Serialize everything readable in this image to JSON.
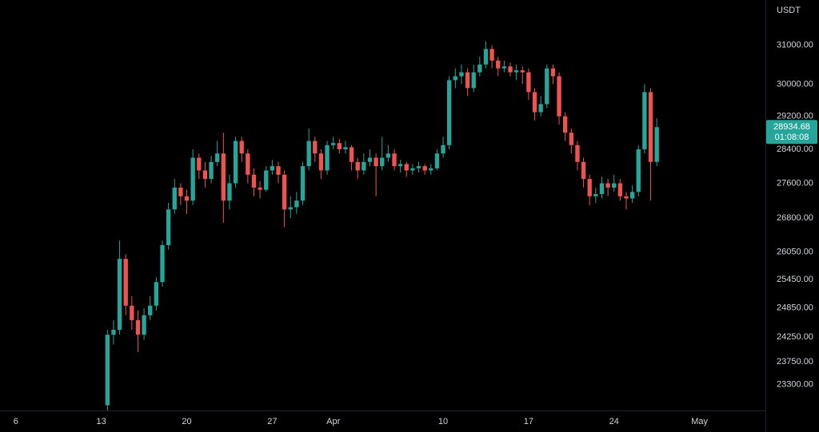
{
  "chart_data": {
    "type": "candlestick",
    "currency": "USDT",
    "log_scale": true,
    "up_color": "#26a69a",
    "down_color": "#ef5350",
    "last_price": 28934.68,
    "countdown": "01:08:08",
    "ylim": [
      22800,
      32200
    ],
    "yticks": [
      {
        "value": 31000,
        "label": "31000.00"
      },
      {
        "value": 30000,
        "label": "30000.00"
      },
      {
        "value": 29200,
        "label": "29200.00"
      },
      {
        "value": 28400,
        "label": "28400.00"
      },
      {
        "value": 27600,
        "label": "27600.00"
      },
      {
        "value": 26800,
        "label": "26800.00"
      },
      {
        "value": 26050,
        "label": "26050.00"
      },
      {
        "value": 25450,
        "label": "25450.00"
      },
      {
        "value": 24850,
        "label": "24850.00"
      },
      {
        "value": 24250,
        "label": "24250.00"
      },
      {
        "value": 23750,
        "label": "23750.00"
      },
      {
        "value": 23300,
        "label": "23300.00"
      }
    ],
    "xlim": [
      4.7,
      67.4
    ],
    "xticks": [
      6,
      13,
      20,
      27,
      {
        "value": 32,
        "label": "Apr"
      },
      {
        "value": 41,
        "label": "10"
      },
      {
        "value": 48,
        "label": "17"
      },
      {
        "value": 55,
        "label": "24"
      },
      {
        "value": 62,
        "label": "May"
      }
    ],
    "x": [
      13.5,
      14,
      14.5,
      15,
      15.5,
      16,
      16.5,
      17,
      17.5,
      18,
      18.5,
      19,
      19.5,
      20,
      20.5,
      21,
      21.5,
      22,
      22.5,
      23,
      23.5,
      24,
      24.5,
      25,
      25.5,
      26,
      26.5,
      27,
      27.5,
      28,
      28.5,
      29,
      29.5,
      30,
      30.5,
      31,
      31.5,
      32,
      32.5,
      33,
      33.5,
      34,
      34.5,
      35,
      35.5,
      36,
      36.5,
      37,
      37.5,
      38,
      38.5,
      39,
      39.5,
      40,
      40.5,
      41,
      41.5,
      42,
      42.5,
      43,
      43.5,
      44,
      44.5,
      45,
      45.5,
      46,
      46.5,
      47,
      47.5,
      48,
      48.5,
      49,
      49.5,
      50,
      50.5,
      51,
      51.5,
      52,
      52.5,
      53,
      53.5,
      54,
      54.5,
      55,
      55.5,
      56,
      56.5,
      57,
      57.5,
      58,
      58.5
    ],
    "open": [
      22900,
      24300,
      24400,
      25900,
      24900,
      24600,
      24300,
      24700,
      24900,
      25400,
      26200,
      27000,
      27500,
      27300,
      27200,
      28200,
      27900,
      27700,
      28100,
      28300,
      27200,
      27600,
      28600,
      28300,
      27800,
      27500,
      27450,
      27900,
      28000,
      27800,
      27000,
      27050,
      27200,
      28000,
      28600,
      28300,
      27900,
      28500,
      28550,
      28400,
      28450,
      28100,
      27900,
      28100,
      28200,
      28000,
      28200,
      28300,
      28000,
      28050,
      27900,
      27950,
      28000,
      27900,
      27950,
      28300,
      28500,
      30100,
      30200,
      30300,
      29900,
      30300,
      30500,
      30900,
      30600,
      30400,
      30450,
      30300,
      30350,
      30300,
      29800,
      29300,
      29500,
      30400,
      30200,
      29200,
      28800,
      28500,
      28100,
      27700,
      27300,
      27350,
      27600,
      27500,
      27600,
      27300,
      27250,
      27400,
      28400,
      29800,
      28100
    ],
    "high": [
      24400,
      24600,
      26300,
      26000,
      25100,
      24800,
      24850,
      25100,
      25500,
      26300,
      27150,
      27700,
      27600,
      27450,
      28400,
      28300,
      28100,
      28250,
      28600,
      28800,
      27800,
      28700,
      28700,
      28400,
      27950,
      27650,
      28000,
      28150,
      28100,
      27900,
      27300,
      27400,
      28100,
      28900,
      28700,
      28400,
      28600,
      28700,
      28650,
      28600,
      28500,
      28200,
      28300,
      28400,
      28300,
      28700,
      28500,
      28400,
      28150,
      28100,
      28050,
      28100,
      28050,
      28050,
      28400,
      28700,
      30200,
      30400,
      30500,
      30400,
      30500,
      30700,
      31100,
      31000,
      30700,
      30600,
      30550,
      30500,
      30450,
      30400,
      29900,
      29700,
      30500,
      30500,
      30300,
      29300,
      28900,
      28600,
      28200,
      27800,
      27500,
      27750,
      27700,
      27800,
      27700,
      27400,
      27550,
      28500,
      30000,
      29900,
      29150
    ],
    "low": [
      22800,
      24100,
      24300,
      24700,
      24400,
      23950,
      24200,
      24600,
      24800,
      25300,
      26100,
      26900,
      27100,
      26900,
      27100,
      27700,
      27500,
      27600,
      28000,
      26700,
      27000,
      27500,
      28100,
      27600,
      27300,
      27250,
      27400,
      27800,
      27600,
      26600,
      26800,
      26900,
      27100,
      27900,
      28100,
      27700,
      27800,
      28400,
      28300,
      28300,
      27900,
      27700,
      27800,
      28000,
      27300,
      27900,
      28100,
      27900,
      27850,
      27750,
      27800,
      27850,
      27800,
      27800,
      27900,
      28200,
      28400,
      29900,
      30000,
      29700,
      29800,
      30200,
      30400,
      30400,
      30200,
      30300,
      30200,
      30100,
      30000,
      29600,
      29100,
      29200,
      29400,
      30000,
      29000,
      28600,
      28300,
      27900,
      27500,
      27100,
      27150,
      27250,
      27300,
      27400,
      27200,
      27000,
      27150,
      27300,
      28300,
      27200,
      28000
    ],
    "close": [
      24300,
      24400,
      25900,
      24900,
      24600,
      24300,
      24700,
      24900,
      25400,
      26200,
      27000,
      27500,
      27300,
      27200,
      28200,
      27900,
      27700,
      28100,
      28300,
      27200,
      27600,
      28600,
      28300,
      27800,
      27500,
      27450,
      27900,
      28000,
      27800,
      27000,
      27050,
      27200,
      28000,
      28600,
      28300,
      27900,
      28500,
      28550,
      28400,
      28450,
      28100,
      27900,
      28100,
      28200,
      28000,
      28200,
      28300,
      28000,
      28050,
      27900,
      27950,
      28000,
      27900,
      27950,
      28300,
      28500,
      30100,
      30200,
      30300,
      29900,
      30300,
      30500,
      30900,
      30600,
      30400,
      30450,
      30300,
      30350,
      30300,
      29800,
      29300,
      29500,
      30400,
      30200,
      29200,
      28800,
      28500,
      28100,
      27700,
      27300,
      27350,
      27600,
      27500,
      27600,
      27300,
      27250,
      27400,
      28400,
      29800,
      28100,
      28934.68
    ]
  }
}
